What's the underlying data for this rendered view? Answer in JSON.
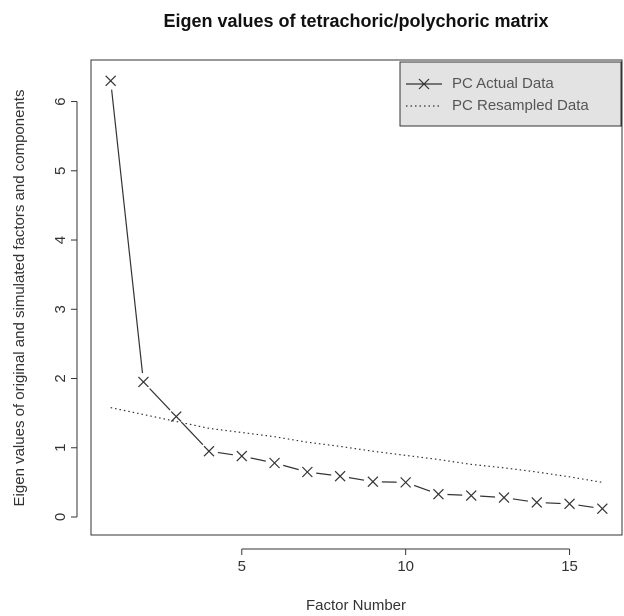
{
  "chart_data": {
    "type": "line",
    "title": "Eigen values of tetrachoric/polychoric matrix",
    "x_label": "Factor Number",
    "y_label": "Eigen values of original  and simulated factors and components",
    "x": [
      1,
      2,
      3,
      4,
      5,
      6,
      7,
      8,
      9,
      10,
      11,
      12,
      13,
      14,
      15,
      16
    ],
    "series": [
      {
        "name": "PC  Actual Data",
        "color": "#333333",
        "style": "solid",
        "marker": "x",
        "values": [
          6.3,
          1.95,
          1.45,
          0.95,
          0.88,
          0.78,
          0.65,
          0.59,
          0.51,
          0.5,
          0.33,
          0.31,
          0.28,
          0.21,
          0.19,
          0.12
        ]
      },
      {
        "name": "PC  Resampled Data",
        "color": "#333333",
        "style": "dotted",
        "values": [
          1.58,
          1.48,
          1.38,
          1.28,
          1.22,
          1.16,
          1.08,
          1.02,
          0.95,
          0.89,
          0.83,
          0.76,
          0.71,
          0.65,
          0.58,
          0.5
        ]
      }
    ],
    "xlim": [
      0.4,
      16.6
    ],
    "ylim": [
      -0.26,
      6.6
    ],
    "xticks": [
      5,
      10,
      15
    ],
    "yticks": [
      0,
      1,
      2,
      3,
      4,
      5,
      6
    ],
    "legend": "top-right"
  }
}
